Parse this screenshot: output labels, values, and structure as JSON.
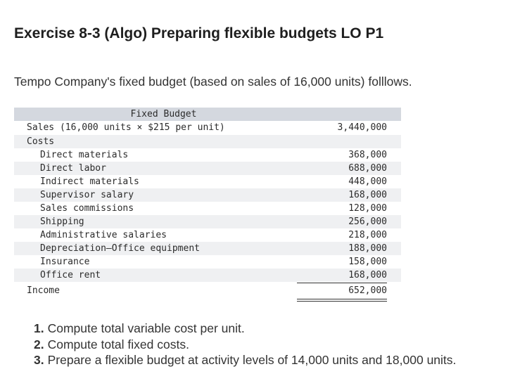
{
  "title": "Exercise 8-3 (Algo) Preparing flexible budgets LO P1",
  "intro": "Tempo Company's fixed budget (based on sales of 16,000 units) folllows.",
  "budget": {
    "column_header": "Fixed Budget",
    "sales": {
      "label": "Sales (16,000 units × $215 per unit)",
      "amount": "3,440,000"
    },
    "costs_label": "Costs",
    "costs": [
      {
        "label": "Direct materials",
        "amount": "368,000"
      },
      {
        "label": "Direct labor",
        "amount": "688,000"
      },
      {
        "label": "Indirect materials",
        "amount": "448,000"
      },
      {
        "label": "Supervisor salary",
        "amount": "168,000"
      },
      {
        "label": "Sales commissions",
        "amount": "128,000"
      },
      {
        "label": "Shipping",
        "amount": "256,000"
      },
      {
        "label": "Administrative salaries",
        "amount": "218,000"
      },
      {
        "label": "Depreciation—Office equipment",
        "amount": "188,000"
      },
      {
        "label": "Insurance",
        "amount": "158,000"
      },
      {
        "label": "Office rent",
        "amount": "168,000"
      }
    ],
    "income": {
      "label": "Income",
      "amount": "652,000"
    }
  },
  "questions": [
    {
      "number": "1.",
      "text": "Compute total variable cost per unit."
    },
    {
      "number": "2.",
      "text": "Compute total fixed costs."
    },
    {
      "number": "3.",
      "text": "Prepare a flexible budget at activity levels of 14,000 units and 18,000 units."
    }
  ]
}
